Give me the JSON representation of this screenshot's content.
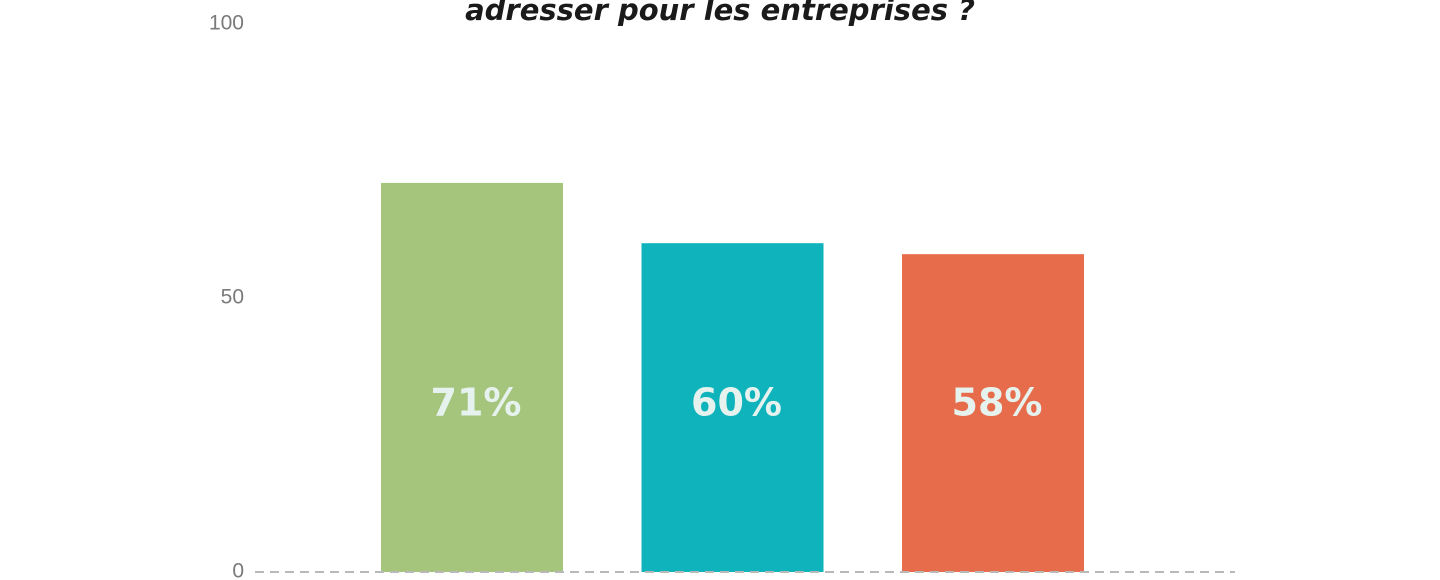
{
  "chart_data": {
    "type": "bar",
    "title": "adresser pour les entreprises ?",
    "xlabel": "",
    "ylabel": "",
    "ylim": [
      0,
      100
    ],
    "yticks": [
      0,
      50,
      100
    ],
    "grid": false,
    "legend": "none",
    "categories": [
      "",
      "",
      ""
    ],
    "values": [
      71,
      60,
      58
    ],
    "data_labels": [
      "71%",
      "60%",
      "58%"
    ],
    "colors": [
      "#a5c57d",
      "#0fb3bc",
      "#e76c4c"
    ],
    "baseline_style": "dashed"
  }
}
